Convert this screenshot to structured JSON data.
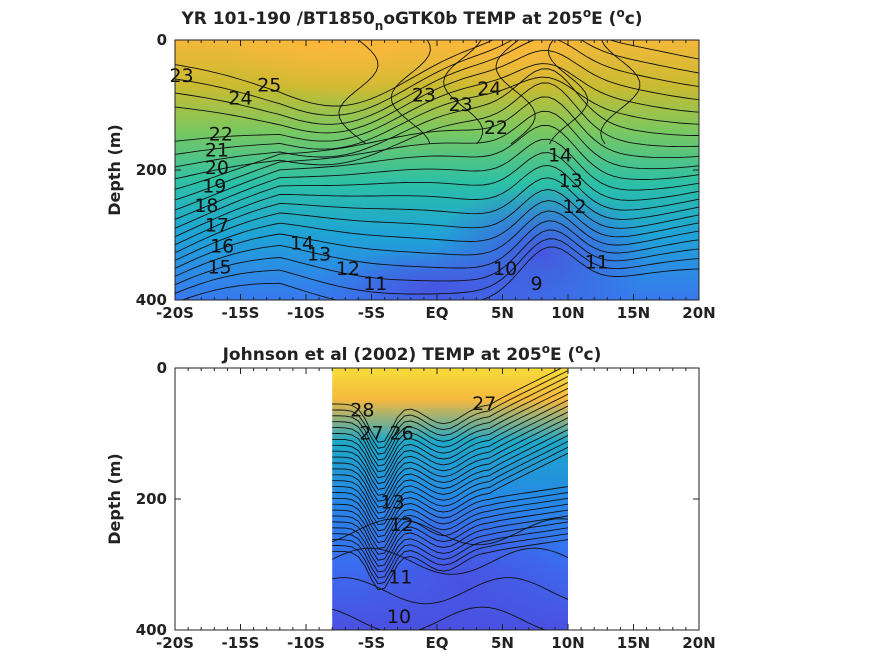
{
  "chart_data": [
    {
      "type": "contour",
      "title": "YR 101-190 /BT1850",
      "title_sub": "n",
      "title_rest": "oGTK0b TEMP at 205",
      "title_deg": "o",
      "title_end": "E (",
      "title_unit_sup": "o",
      "title_close": "c)",
      "ylabel": "Depth (m)",
      "x_ticks": [
        "-20S",
        "-15S",
        "-10S",
        "-5S",
        "EQ",
        "5N",
        "10N",
        "15N",
        "20N"
      ],
      "y_ticks": [
        "0",
        "200",
        "400"
      ],
      "xlim": [
        -20,
        20
      ],
      "ylim": [
        0,
        400
      ],
      "y_reversed": true,
      "data_extent": [
        -20,
        20
      ],
      "contour_labels": [
        {
          "text": "25",
          "x": -12.8,
          "y": 70
        },
        {
          "text": "24",
          "x": -15,
          "y": 90
        },
        {
          "text": "23",
          "x": -19.5,
          "y": 55
        },
        {
          "text": "23",
          "x": -1,
          "y": 85
        },
        {
          "text": "23",
          "x": 1.8,
          "y": 100
        },
        {
          "text": "24",
          "x": 4,
          "y": 75
        },
        {
          "text": "22",
          "x": -16.5,
          "y": 145
        },
        {
          "text": "22",
          "x": 4.5,
          "y": 135
        },
        {
          "text": "21",
          "x": -16.8,
          "y": 170
        },
        {
          "text": "20",
          "x": -16.8,
          "y": 197
        },
        {
          "text": "19",
          "x": -17,
          "y": 225
        },
        {
          "text": "18",
          "x": -17.6,
          "y": 255
        },
        {
          "text": "17",
          "x": -16.8,
          "y": 285
        },
        {
          "text": "16",
          "x": -16.4,
          "y": 318
        },
        {
          "text": "15",
          "x": -16.6,
          "y": 350
        },
        {
          "text": "14",
          "x": -10.3,
          "y": 313
        },
        {
          "text": "13",
          "x": -9.0,
          "y": 330
        },
        {
          "text": "12",
          "x": -6.8,
          "y": 352
        },
        {
          "text": "11",
          "x": -4.7,
          "y": 375
        },
        {
          "text": "14",
          "x": 9.4,
          "y": 178
        },
        {
          "text": "13",
          "x": 10.2,
          "y": 217
        },
        {
          "text": "12",
          "x": 10.5,
          "y": 257
        },
        {
          "text": "11",
          "x": 12.2,
          "y": 342
        },
        {
          "text": "10",
          "x": 5.2,
          "y": 352
        },
        {
          "text": "9",
          "x": 7.6,
          "y": 375
        }
      ],
      "colors": [
        "#fdb83e",
        "#e0b92e",
        "#b7bd2f",
        "#77c95a",
        "#2fc1a5",
        "#1ea9cf",
        "#2d8ee8",
        "#3b6ff0",
        "#4a55e2"
      ]
    },
    {
      "type": "contour",
      "title": "Johnson et al (2002) TEMP at 205",
      "title_deg": "o",
      "title_end": "E (",
      "title_unit_sup": "o",
      "title_close": "c)",
      "ylabel": "Depth (m)",
      "x_ticks": [
        "-20S",
        "-15S",
        "-10S",
        "-5S",
        "EQ",
        "5N",
        "10N",
        "15N",
        "20N"
      ],
      "y_ticks": [
        "0",
        "200",
        "400"
      ],
      "xlim": [
        -20,
        20
      ],
      "ylim": [
        0,
        400
      ],
      "y_reversed": true,
      "data_extent": [
        -8,
        10
      ],
      "contour_labels": [
        {
          "text": "28",
          "x": -5.7,
          "y": 65
        },
        {
          "text": "27",
          "x": -5.0,
          "y": 100
        },
        {
          "text": "26",
          "x": -2.7,
          "y": 100
        },
        {
          "text": "27",
          "x": 3.6,
          "y": 55
        },
        {
          "text": "13",
          "x": -3.4,
          "y": 205
        },
        {
          "text": "12",
          "x": -2.7,
          "y": 240
        },
        {
          "text": "11",
          "x": -2.8,
          "y": 320
        },
        {
          "text": "10",
          "x": -2.9,
          "y": 380
        }
      ],
      "colors": [
        "#f7e23c",
        "#fbb63f",
        "#e0b92e",
        "#b8bd2f",
        "#55c67a",
        "#22b5ba",
        "#1fa0d8",
        "#2f86ea",
        "#3c68ef",
        "#4a50e0"
      ]
    }
  ]
}
